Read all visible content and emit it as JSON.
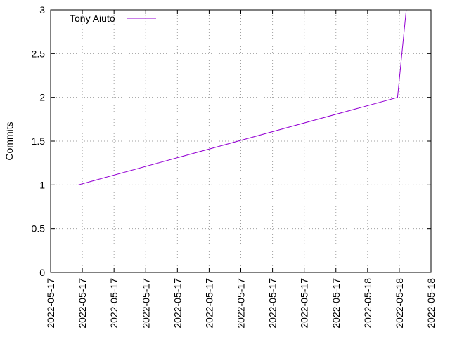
{
  "chart_data": {
    "type": "line",
    "ylabel": "Commits",
    "xlabel": "",
    "ylim": [
      0,
      3
    ],
    "yticks": [
      "0",
      "0.5",
      "1",
      "1.5",
      "2",
      "2.5",
      "3"
    ],
    "xticks": [
      "2022-05-17",
      "2022-05-17",
      "2022-05-17",
      "2022-05-17",
      "2022-05-17",
      "2022-05-17",
      "2022-05-17",
      "2022-05-17",
      "2022-05-17",
      "2022-05-17",
      "2022-05-18",
      "2022-05-18",
      "2022-05-18"
    ],
    "grid": true,
    "legend": "top-left",
    "series": [
      {
        "name": "Tony Aiuto",
        "color": "#9400d3",
        "points": [
          {
            "x": "2022-05-17",
            "y": 1
          },
          {
            "x": "2022-05-18",
            "y": 2
          },
          {
            "x": "2022-05-18",
            "y": 3
          }
        ]
      }
    ]
  }
}
